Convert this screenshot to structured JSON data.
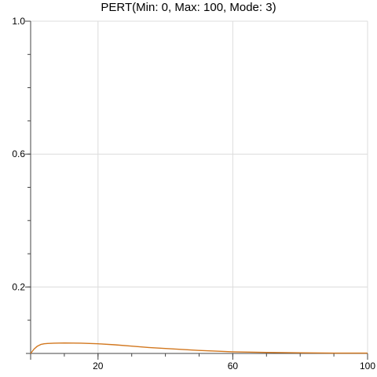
{
  "chart_data": {
    "type": "line",
    "title": "PERT(Min: 0, Max: 100, Mode: 3)",
    "xlabel": "",
    "ylabel": "",
    "xlim": [
      0,
      100
    ],
    "ylim": [
      0,
      1.0
    ],
    "grid": true,
    "x_ticks": [
      20,
      60,
      100
    ],
    "y_ticks": [
      0.2,
      0.6,
      1.0
    ],
    "x_tick_labels": [
      "20",
      "60",
      "100"
    ],
    "y_tick_labels": [
      "0.2",
      "0.6",
      "1.0"
    ],
    "series": [
      {
        "color": "#d2771e",
        "x": [
          0,
          1,
          2,
          3,
          4,
          5,
          7,
          10,
          15,
          20,
          25,
          30,
          35,
          40,
          50,
          60,
          70,
          80,
          90,
          100
        ],
        "values": [
          0.0,
          0.013,
          0.022,
          0.027,
          0.029,
          0.03,
          0.031,
          0.0315,
          0.031,
          0.029,
          0.026,
          0.022,
          0.018,
          0.015,
          0.009,
          0.005,
          0.003,
          0.002,
          0.001,
          0.001
        ]
      }
    ]
  }
}
